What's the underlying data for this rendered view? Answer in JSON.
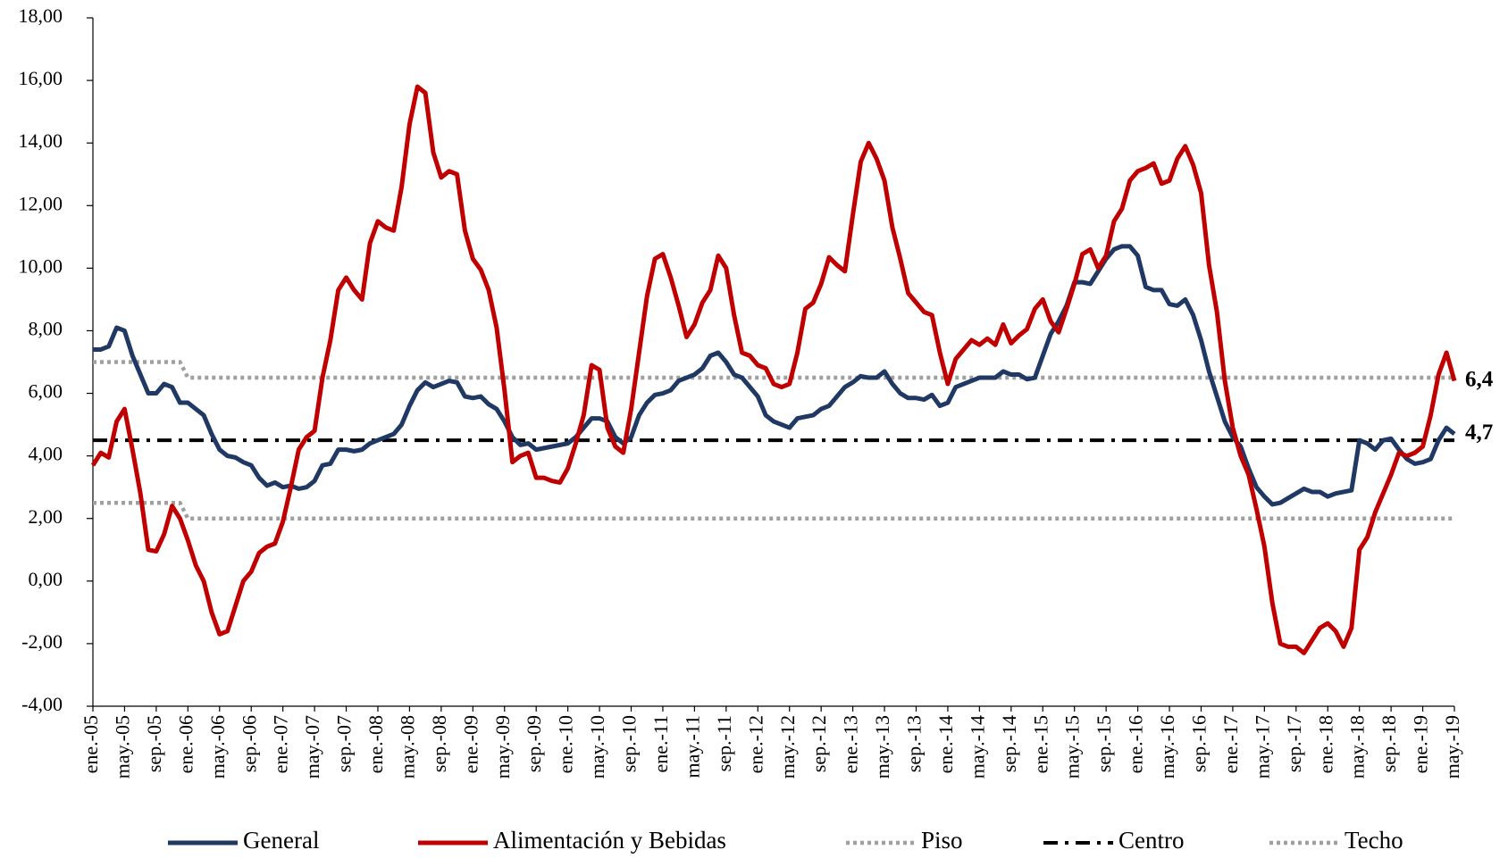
{
  "chart_data": {
    "type": "line",
    "categories": [
      "ene.-05",
      null,
      null,
      null,
      "may.-05",
      null,
      null,
      null,
      "sep.-05",
      null,
      null,
      null,
      "ene.-06",
      null,
      null,
      null,
      "may.-06",
      null,
      null,
      null,
      "sep.-06",
      null,
      null,
      null,
      "ene.-07",
      null,
      null,
      null,
      "may.-07",
      null,
      null,
      null,
      "sep.-07",
      null,
      null,
      null,
      "ene.-08",
      null,
      null,
      null,
      "may.-08",
      null,
      null,
      null,
      "sep.-08",
      null,
      null,
      null,
      "ene.-09",
      null,
      null,
      null,
      "may.-09",
      null,
      null,
      null,
      "sep.-09",
      null,
      null,
      null,
      "ene.-10",
      null,
      null,
      null,
      "may.-10",
      null,
      null,
      null,
      "sep.-10",
      null,
      null,
      null,
      "ene.-11",
      null,
      null,
      null,
      "may.-11",
      null,
      null,
      null,
      "sep.-11",
      null,
      null,
      null,
      "ene.-12",
      null,
      null,
      null,
      "may.-12",
      null,
      null,
      null,
      "sep.-12",
      null,
      null,
      null,
      "ene.-13",
      null,
      null,
      null,
      "may.-13",
      null,
      null,
      null,
      "sep.-13",
      null,
      null,
      null,
      "ene.-14",
      null,
      null,
      null,
      "may.-14",
      null,
      null,
      null,
      "sep.-14",
      null,
      null,
      null,
      "ene.-15",
      null,
      null,
      null,
      "may.-15",
      null,
      null,
      null,
      "sep.-15",
      null,
      null,
      null,
      "ene.-16",
      null,
      null,
      null,
      "may.-16",
      null,
      null,
      null,
      "sep.-16",
      null,
      null,
      null,
      "ene.-17",
      null,
      null,
      null,
      "may.-17",
      null,
      null,
      null,
      "sep.-17",
      null,
      null,
      null,
      "ene.-18",
      null,
      null,
      null,
      "may.-18",
      null,
      null,
      null,
      "sep.-18",
      null,
      null,
      null,
      "ene.-19",
      null,
      null,
      null,
      "may.-19"
    ],
    "series": [
      {
        "name": "General",
        "color": "#1f3864",
        "style": "solid",
        "values": [
          7.4,
          7.4,
          7.5,
          8.1,
          8.0,
          7.2,
          6.6,
          6.0,
          6.0,
          6.3,
          6.2,
          5.7,
          5.7,
          5.5,
          5.3,
          4.7,
          4.2,
          4.0,
          3.95,
          3.8,
          3.7,
          3.3,
          3.05,
          3.15,
          3.0,
          3.05,
          2.95,
          3.0,
          3.2,
          3.7,
          3.75,
          4.2,
          4.2,
          4.15,
          4.2,
          4.4,
          4.5,
          4.6,
          4.7,
          5.0,
          5.6,
          6.1,
          6.35,
          6.2,
          6.3,
          6.4,
          6.35,
          5.9,
          5.85,
          5.9,
          5.65,
          5.5,
          5.1,
          4.6,
          4.35,
          4.4,
          4.2,
          4.25,
          4.3,
          4.35,
          4.4,
          4.6,
          4.9,
          5.2,
          5.2,
          5.1,
          4.6,
          4.4,
          4.6,
          5.3,
          5.7,
          5.95,
          6.0,
          6.1,
          6.4,
          6.5,
          6.6,
          6.8,
          7.2,
          7.3,
          7.0,
          6.6,
          6.5,
          6.2,
          5.9,
          5.3,
          5.1,
          5.0,
          4.9,
          5.2,
          5.25,
          5.3,
          5.5,
          5.6,
          5.9,
          6.2,
          6.35,
          6.55,
          6.5,
          6.5,
          6.7,
          6.3,
          6.0,
          5.85,
          5.85,
          5.8,
          5.95,
          5.6,
          5.7,
          6.2,
          6.3,
          6.4,
          6.5,
          6.5,
          6.5,
          6.7,
          6.6,
          6.6,
          6.45,
          6.5,
          7.2,
          7.9,
          8.3,
          8.8,
          9.55,
          9.55,
          9.5,
          9.9,
          10.3,
          10.6,
          10.7,
          10.7,
          10.4,
          9.4,
          9.3,
          9.3,
          8.85,
          8.8,
          9.0,
          8.5,
          7.7,
          6.7,
          5.9,
          5.1,
          4.6,
          4.3,
          3.6,
          3.0,
          2.7,
          2.45,
          2.5,
          2.65,
          2.8,
          2.95,
          2.85,
          2.85,
          2.7,
          2.8,
          2.85,
          2.9,
          4.5,
          4.4,
          4.2,
          4.5,
          4.55,
          4.2,
          3.9,
          3.75,
          3.8,
          3.9,
          4.5,
          4.9,
          4.7
        ]
      },
      {
        "name": "Alimentación y Bebidas",
        "color": "#c00000",
        "style": "solid",
        "values": [
          3.7,
          4.1,
          3.95,
          5.1,
          5.5,
          4.2,
          2.8,
          1.0,
          0.95,
          1.5,
          2.4,
          2.0,
          1.3,
          0.5,
          0.0,
          -1.0,
          -1.7,
          -1.6,
          -0.8,
          0.0,
          0.3,
          0.9,
          1.1,
          1.2,
          1.9,
          3.0,
          4.2,
          4.6,
          4.8,
          6.5,
          7.7,
          9.3,
          9.7,
          9.3,
          9.0,
          10.8,
          11.5,
          11.3,
          11.2,
          12.6,
          14.6,
          15.8,
          15.6,
          13.7,
          12.9,
          13.1,
          13.0,
          11.2,
          10.3,
          9.95,
          9.3,
          8.1,
          6.1,
          3.8,
          4.0,
          4.1,
          3.3,
          3.3,
          3.2,
          3.15,
          3.6,
          4.4,
          5.3,
          6.9,
          6.75,
          4.9,
          4.3,
          4.1,
          5.5,
          7.3,
          9.1,
          10.3,
          10.45,
          9.7,
          8.8,
          7.8,
          8.2,
          8.9,
          9.3,
          10.4,
          10.0,
          8.5,
          7.3,
          7.2,
          6.9,
          6.8,
          6.3,
          6.2,
          6.3,
          7.3,
          8.7,
          8.9,
          9.5,
          10.35,
          10.1,
          9.9,
          11.7,
          13.4,
          14.0,
          13.5,
          12.8,
          11.3,
          10.3,
          9.2,
          8.9,
          8.6,
          8.5,
          7.3,
          6.3,
          7.1,
          7.4,
          7.7,
          7.55,
          7.75,
          7.55,
          8.2,
          7.6,
          7.85,
          8.05,
          8.7,
          9.0,
          8.3,
          7.95,
          8.7,
          9.5,
          10.45,
          10.6,
          10.0,
          10.4,
          11.5,
          11.9,
          12.8,
          13.1,
          13.2,
          13.35,
          12.7,
          12.8,
          13.5,
          13.9,
          13.3,
          12.4,
          10.1,
          8.6,
          6.4,
          4.9,
          4.0,
          3.4,
          2.3,
          1.1,
          -0.7,
          -2.0,
          -2.1,
          -2.1,
          -2.3,
          -1.9,
          -1.5,
          -1.35,
          -1.6,
          -2.1,
          -1.5,
          1.0,
          1.4,
          2.2,
          2.8,
          3.4,
          4.1,
          4.0,
          4.1,
          4.3,
          5.3,
          6.6,
          7.3,
          6.4
        ]
      },
      {
        "name": "Piso",
        "color": "#a0a0a0",
        "style": "dotted",
        "values": [
          2.5,
          2.5,
          2.5,
          2.5,
          2.5,
          2.5,
          2.5,
          2.5,
          2.5,
          2.5,
          2.5,
          2.5,
          2,
          2,
          2,
          2,
          2,
          2,
          2,
          2,
          2,
          2,
          2,
          2,
          2,
          2,
          2,
          2,
          2,
          2,
          2,
          2,
          2,
          2,
          2,
          2,
          2,
          2,
          2,
          2,
          2,
          2,
          2,
          2,
          2,
          2,
          2,
          2,
          2,
          2,
          2,
          2,
          2,
          2,
          2,
          2,
          2,
          2,
          2,
          2,
          2,
          2,
          2,
          2,
          2,
          2,
          2,
          2,
          2,
          2,
          2,
          2,
          2,
          2,
          2,
          2,
          2,
          2,
          2,
          2,
          2,
          2,
          2,
          2,
          2,
          2,
          2,
          2,
          2,
          2,
          2,
          2,
          2,
          2,
          2,
          2,
          2,
          2,
          2,
          2,
          2,
          2,
          2,
          2,
          2,
          2,
          2,
          2,
          2,
          2,
          2,
          2,
          2,
          2,
          2,
          2,
          2,
          2,
          2,
          2,
          2,
          2,
          2,
          2,
          2,
          2,
          2,
          2,
          2,
          2,
          2,
          2,
          2,
          2,
          2,
          2,
          2,
          2,
          2,
          2,
          2,
          2,
          2,
          2,
          2,
          2,
          2,
          2,
          2,
          2,
          2,
          2,
          2,
          2,
          2,
          2,
          2,
          2,
          2,
          2,
          2,
          2,
          2,
          2,
          2,
          2,
          2,
          2,
          2,
          2,
          2,
          2,
          2
        ]
      },
      {
        "name": "Centro",
        "color": "#000000",
        "style": "dashdot",
        "values": [
          4.5,
          4.5,
          4.5,
          4.5,
          4.5,
          4.5,
          4.5,
          4.5,
          4.5,
          4.5,
          4.5,
          4.5,
          4.5,
          4.5,
          4.5,
          4.5,
          4.5,
          4.5,
          4.5,
          4.5,
          4.5,
          4.5,
          4.5,
          4.5,
          4.5,
          4.5,
          4.5,
          4.5,
          4.5,
          4.5,
          4.5,
          4.5,
          4.5,
          4.5,
          4.5,
          4.5,
          4.5,
          4.5,
          4.5,
          4.5,
          4.5,
          4.5,
          4.5,
          4.5,
          4.5,
          4.5,
          4.5,
          4.5,
          4.5,
          4.5,
          4.5,
          4.5,
          4.5,
          4.5,
          4.5,
          4.5,
          4.5,
          4.5,
          4.5,
          4.5,
          4.5,
          4.5,
          4.5,
          4.5,
          4.5,
          4.5,
          4.5,
          4.5,
          4.5,
          4.5,
          4.5,
          4.5,
          4.5,
          4.5,
          4.5,
          4.5,
          4.5,
          4.5,
          4.5,
          4.5,
          4.5,
          4.5,
          4.5,
          4.5,
          4.5,
          4.5,
          4.5,
          4.5,
          4.5,
          4.5,
          4.5,
          4.5,
          4.5,
          4.5,
          4.5,
          4.5,
          4.5,
          4.5,
          4.5,
          4.5,
          4.5,
          4.5,
          4.5,
          4.5,
          4.5,
          4.5,
          4.5,
          4.5,
          4.5,
          4.5,
          4.5,
          4.5,
          4.5,
          4.5,
          4.5,
          4.5,
          4.5,
          4.5,
          4.5,
          4.5,
          4.5,
          4.5,
          4.5,
          4.5,
          4.5,
          4.5,
          4.5,
          4.5,
          4.5,
          4.5,
          4.5,
          4.5,
          4.5,
          4.5,
          4.5,
          4.5,
          4.5,
          4.5,
          4.5,
          4.5,
          4.5,
          4.5,
          4.5,
          4.5,
          4.5,
          4.5,
          4.5,
          4.5,
          4.5,
          4.5,
          4.5,
          4.5,
          4.5,
          4.5,
          4.5,
          4.5,
          4.5,
          4.5,
          4.5,
          4.5,
          4.5,
          4.5,
          4.5,
          4.5,
          4.5,
          4.5,
          4.5,
          4.5,
          4.5,
          4.5,
          4.5,
          4.5,
          4.5
        ]
      },
      {
        "name": "Techo",
        "color": "#a0a0a0",
        "style": "dotted",
        "values": [
          7,
          7,
          7,
          7,
          7,
          7,
          7,
          7,
          7,
          7,
          7,
          7,
          6.5,
          6.5,
          6.5,
          6.5,
          6.5,
          6.5,
          6.5,
          6.5,
          6.5,
          6.5,
          6.5,
          6.5,
          6.5,
          6.5,
          6.5,
          6.5,
          6.5,
          6.5,
          6.5,
          6.5,
          6.5,
          6.5,
          6.5,
          6.5,
          6.5,
          6.5,
          6.5,
          6.5,
          6.5,
          6.5,
          6.5,
          6.5,
          6.5,
          6.5,
          6.5,
          6.5,
          6.5,
          6.5,
          6.5,
          6.5,
          6.5,
          6.5,
          6.5,
          6.5,
          6.5,
          6.5,
          6.5,
          6.5,
          6.5,
          6.5,
          6.5,
          6.5,
          6.5,
          6.5,
          6.5,
          6.5,
          6.5,
          6.5,
          6.5,
          6.5,
          6.5,
          6.5,
          6.5,
          6.5,
          6.5,
          6.5,
          6.5,
          6.5,
          6.5,
          6.5,
          6.5,
          6.5,
          6.5,
          6.5,
          6.5,
          6.5,
          6.5,
          6.5,
          6.5,
          6.5,
          6.5,
          6.5,
          6.5,
          6.5,
          6.5,
          6.5,
          6.5,
          6.5,
          6.5,
          6.5,
          6.5,
          6.5,
          6.5,
          6.5,
          6.5,
          6.5,
          6.5,
          6.5,
          6.5,
          6.5,
          6.5,
          6.5,
          6.5,
          6.5,
          6.5,
          6.5,
          6.5,
          6.5,
          6.5,
          6.5,
          6.5,
          6.5,
          6.5,
          6.5,
          6.5,
          6.5,
          6.5,
          6.5,
          6.5,
          6.5,
          6.5,
          6.5,
          6.5,
          6.5,
          6.5,
          6.5,
          6.5,
          6.5,
          6.5,
          6.5,
          6.5,
          6.5,
          6.5,
          6.5,
          6.5,
          6.5,
          6.5,
          6.5,
          6.5,
          6.5,
          6.5,
          6.5,
          6.5,
          6.5,
          6.5,
          6.5,
          6.5,
          6.5,
          6.5,
          6.5,
          6.5,
          6.5,
          6.5,
          6.5,
          6.5,
          6.5,
          6.5,
          6.5,
          6.5,
          6.5,
          6.5
        ]
      }
    ],
    "annotations": [
      {
        "text": "6,4",
        "value": 6.4,
        "color": "#c00000"
      },
      {
        "text": "4,7",
        "value": 4.7,
        "color": "#1f3864"
      }
    ],
    "ylim": [
      -4,
      18
    ],
    "yticks": [
      {
        "value": -4,
        "label": "-4,00"
      },
      {
        "value": -2,
        "label": "-2,00"
      },
      {
        "value": 0,
        "label": "0,00"
      },
      {
        "value": 2,
        "label": "2,00"
      },
      {
        "value": 4,
        "label": "4,00"
      },
      {
        "value": 6,
        "label": "6,00"
      },
      {
        "value": 8,
        "label": "8,00"
      },
      {
        "value": 10,
        "label": "10,00"
      },
      {
        "value": 12,
        "label": "12,00"
      },
      {
        "value": 14,
        "label": "14,00"
      },
      {
        "value": 16,
        "label": "16,00"
      },
      {
        "value": 18,
        "label": "18,00"
      }
    ],
    "grid": false,
    "legend": "bottom"
  }
}
